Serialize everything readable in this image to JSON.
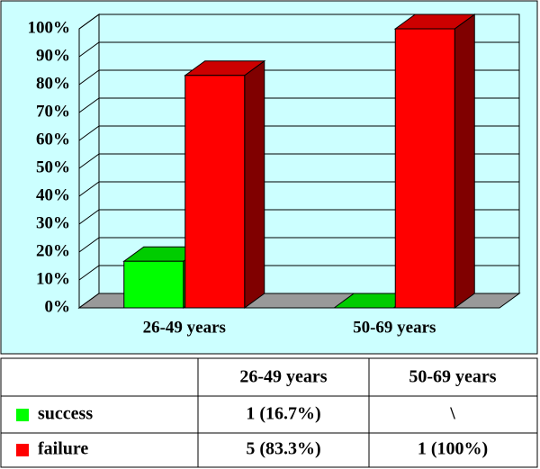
{
  "chart_data": {
    "type": "bar3d",
    "categories": [
      "26-49 years",
      "50-69 years"
    ],
    "series": [
      {
        "name": "success",
        "color": "#00ff00",
        "values": [
          16.7,
          0
        ]
      },
      {
        "name": "failure",
        "color": "#ff0000",
        "values": [
          83.3,
          100
        ]
      }
    ],
    "ylim": [
      0,
      100
    ],
    "yticks": [
      {
        "value": 0,
        "label": "0%"
      },
      {
        "value": 10,
        "label": "10%"
      },
      {
        "value": 20,
        "label": "20%"
      },
      {
        "value": 30,
        "label": "30%"
      },
      {
        "value": 40,
        "label": "40%"
      },
      {
        "value": 50,
        "label": "50%"
      },
      {
        "value": 60,
        "label": "60%"
      },
      {
        "value": 70,
        "label": "70%"
      },
      {
        "value": 80,
        "label": "80%"
      },
      {
        "value": 90,
        "label": "90%"
      },
      {
        "value": 100,
        "label": "100%"
      }
    ],
    "grid": true
  },
  "table": {
    "rows": [
      [
        "1 (16.7%)",
        "\\"
      ],
      [
        "5 (83.3%)",
        "1 (100%)"
      ]
    ]
  }
}
